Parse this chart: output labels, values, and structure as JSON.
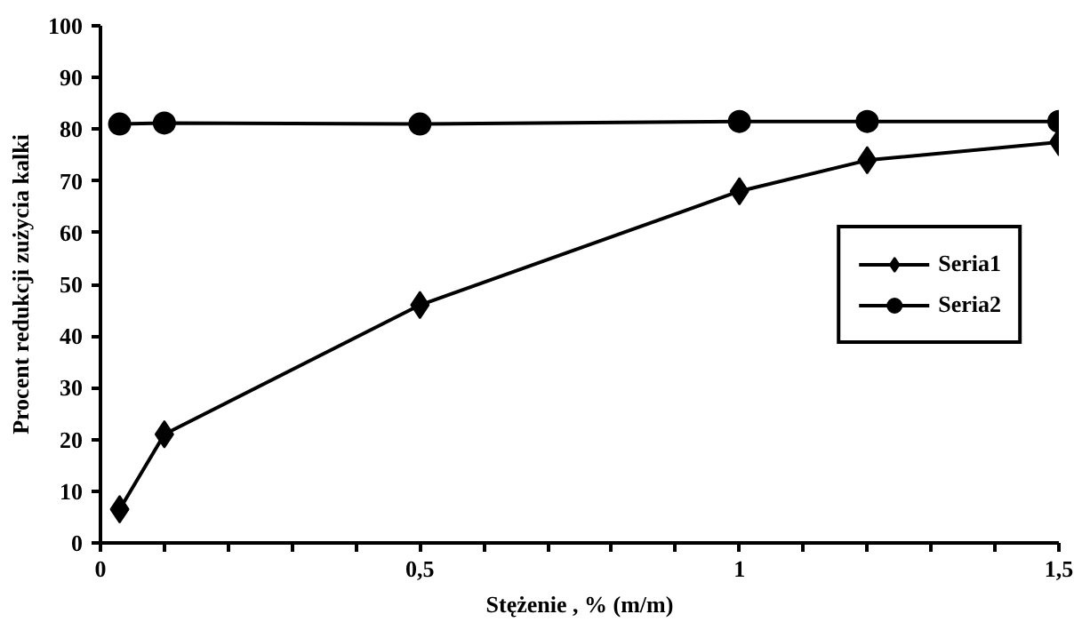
{
  "chart_data": {
    "type": "line",
    "xlabel": "Stężenie , % (m/m)",
    "ylabel": "Procent redukcji zużycia kalki",
    "x": [
      0.03,
      0.1,
      0.5,
      1.0,
      1.2,
      1.5
    ],
    "series": [
      {
        "name": "Seria1",
        "color": "#000000",
        "marker": "diamond",
        "values": [
          6.5,
          21,
          46,
          68,
          74,
          77.5
        ]
      },
      {
        "name": "Seria2",
        "color": "#000000",
        "marker": "circle",
        "values": [
          81,
          81.2,
          81,
          81.5,
          81.5,
          81.5
        ]
      }
    ],
    "xlim": [
      0,
      1.5
    ],
    "ylim": [
      0,
      100
    ],
    "xticks": [
      0,
      {
        "value": 0.1,
        "label": null
      },
      {
        "value": 0.2,
        "label": null
      },
      {
        "value": 0.3,
        "label": null
      },
      {
        "value": 0.4,
        "label": null
      },
      {
        "value": 0.5,
        "label": "0,5"
      },
      {
        "value": 0.6,
        "label": null
      },
      {
        "value": 0.7,
        "label": null
      },
      {
        "value": 0.8,
        "label": null
      },
      {
        "value": 0.9,
        "label": null
      },
      1,
      {
        "value": 1.1,
        "label": null
      },
      {
        "value": 1.2,
        "label": null
      },
      {
        "value": 1.3,
        "label": null
      },
      {
        "value": 1.4,
        "label": null
      },
      {
        "value": 1.5,
        "label": "1,5"
      }
    ],
    "yticks": [
      0,
      10,
      20,
      30,
      40,
      50,
      60,
      70,
      80,
      90,
      100
    ],
    "grid": false,
    "legend": "right",
    "line_style": "solid"
  }
}
